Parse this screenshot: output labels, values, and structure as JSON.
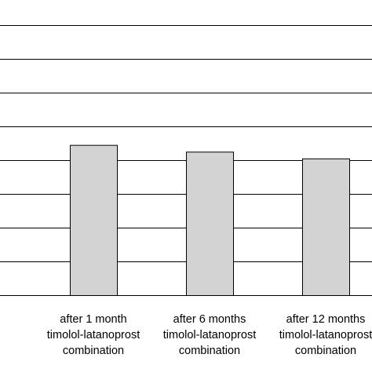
{
  "chart_data": {
    "type": "bar",
    "categories": [
      [
        "after 1 month",
        "timolol-latanoprost",
        "combination"
      ],
      [
        "after 6 months",
        "timolol-latanoprost",
        "combination"
      ],
      [
        "after 12 months",
        "timolol-latanoprost",
        "combination"
      ]
    ],
    "values": [
      4.45,
      4.25,
      4.05
    ],
    "ylim": [
      0,
      9
    ],
    "grid": true,
    "legend": "none",
    "colors": {
      "bar_fill": "#d3d3d3",
      "bar_stroke": "#000000",
      "grid": "#000000",
      "text": "#000000"
    }
  }
}
